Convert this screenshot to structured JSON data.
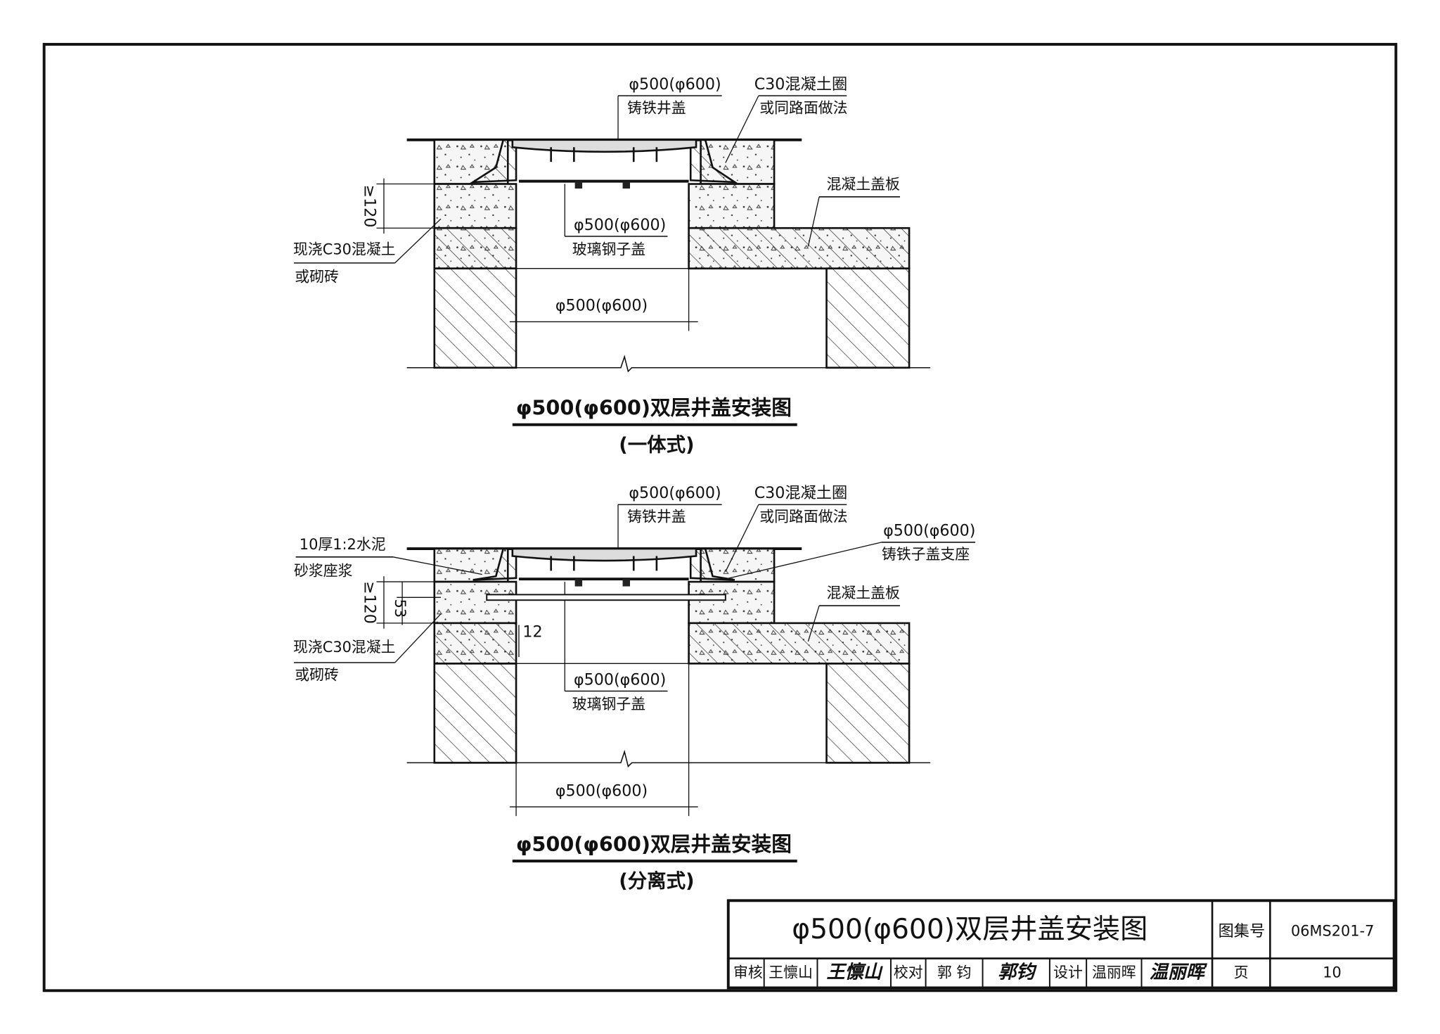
{
  "drawings": [
    {
      "cover_label": "φ500(φ600)",
      "cover_name": "铸铁井盖",
      "ring_label": "C30混凝土圈",
      "ring_note": "或同路面做法",
      "slab_label": "混凝土盖板",
      "subcover_label": "φ500(φ600)",
      "subcover_name": "玻璃钢子盖",
      "wall_label": "现浇C30混凝土",
      "wall_note": "或砌砖",
      "dim_height": "≥120",
      "dim_width": "φ500(φ600)",
      "title": "φ500(φ600)双层井盖安装图",
      "subtitle": "(一体式)"
    },
    {
      "cover_label": "φ500(φ600)",
      "cover_name": "铸铁井盖",
      "ring_label": "C30混凝土圈",
      "ring_note": "或同路面做法",
      "slab_label": "混凝土盖板",
      "subcover_label": "φ500(φ600)",
      "subcover_name": "玻璃钢子盖",
      "wall_label": "现浇C30混凝土",
      "wall_note": "或砌砖",
      "dim_height": "≥120",
      "dim_width": "φ500(φ600)",
      "mortar_label": "10厚1:2水泥",
      "mortar_note": "砂浆座浆",
      "support_label": "φ500(φ600)",
      "support_name": "铸铁子盖支座",
      "dim_53": "53",
      "dim_12": "12",
      "title": "φ500(φ600)双层井盖安装图",
      "subtitle": "(分离式)"
    }
  ],
  "title_block": {
    "title": "φ500(φ600)双层井盖安装图",
    "atlas_label": "图集号",
    "atlas_no": "06MS201-7",
    "reviewer_role": "审核",
    "reviewer": "王懔山",
    "reviewer_sign": "王懔山",
    "checker_role": "校对",
    "checker": "郭 钧",
    "checker_sign": "郭钧",
    "designer_role": "设计",
    "designer": "温丽晖",
    "designer_sign": "温丽晖",
    "page_label": "页",
    "page": "10"
  }
}
